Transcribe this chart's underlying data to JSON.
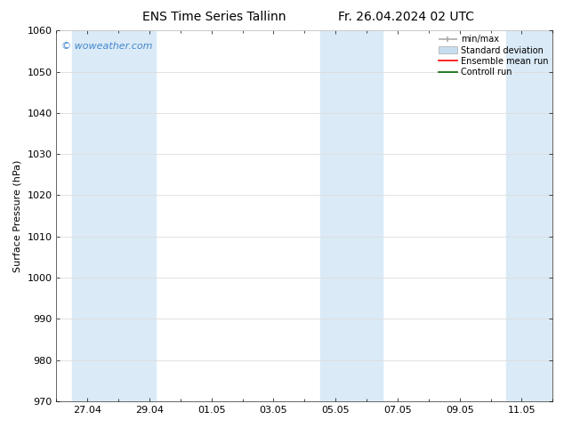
{
  "title_left": "ENS Time Series Tallinn",
  "title_right": "Fr. 26.04.2024 02 UTC",
  "ylabel": "Surface Pressure (hPa)",
  "ylim": [
    970,
    1060
  ],
  "yticks": [
    970,
    980,
    990,
    1000,
    1010,
    1020,
    1030,
    1040,
    1050,
    1060
  ],
  "xtick_labels": [
    "27.04",
    "29.04",
    "01.05",
    "03.05",
    "05.05",
    "07.05",
    "09.05",
    "11.05"
  ],
  "xtick_positions": [
    1,
    3,
    5,
    7,
    9,
    11,
    13,
    15
  ],
  "xlim": [
    0,
    16
  ],
  "band_ranges": [
    [
      0.5,
      3.2
    ],
    [
      8.5,
      10.5
    ],
    [
      14.5,
      16.0
    ]
  ],
  "band_color": "#daeaf7",
  "background_color": "#ffffff",
  "watermark_text": "© woweather.com",
  "watermark_color": "#4488cc",
  "minmax_color": "#aaaaaa",
  "std_color": "#c8ddf0",
  "std_edge_color": "#aaaaaa",
  "ens_color": "#ff0000",
  "ctrl_color": "#006600",
  "grid_color": "#dddddd",
  "spine_color": "#666666",
  "tick_label_color": "#000000",
  "title_color": "#000000",
  "title_fontsize": 10,
  "axis_fontsize": 8,
  "ylabel_fontsize": 8,
  "legend_fontsize": 7,
  "watermark_fontsize": 8
}
